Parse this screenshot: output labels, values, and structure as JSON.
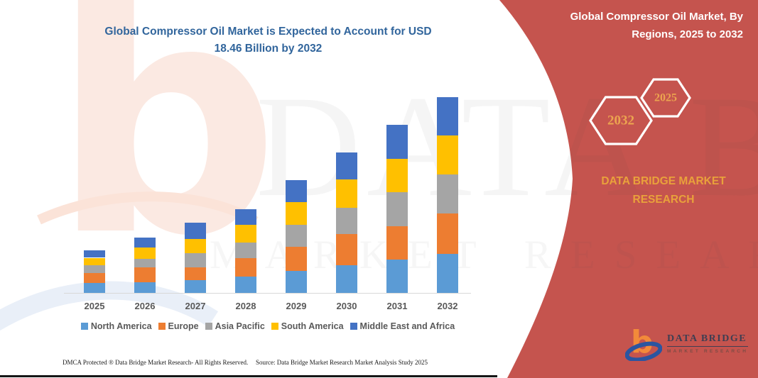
{
  "chart": {
    "title_line1": "Global Compressor Oil Market is Expected to Account for USD",
    "title_line2": "18.46 Billion by 2032"
  },
  "chart_data": {
    "type": "bar",
    "stacked": true,
    "units": "USD Billion",
    "title": "Global Compressor Oil Market is Expected to Account for USD 18.46 Billion by 2032",
    "xlabel": "",
    "ylabel": "",
    "ylim": [
      0,
      20
    ],
    "grid": false,
    "legend_position": "bottom",
    "categories": [
      "2025",
      "2026",
      "2027",
      "2028",
      "2029",
      "2030",
      "2031",
      "2032"
    ],
    "series": [
      {
        "name": "North America",
        "color": "#5B9BD5",
        "values": [
          0.96,
          1.0,
          1.2,
          1.56,
          2.05,
          2.61,
          3.12,
          3.68
        ]
      },
      {
        "name": "Europe",
        "color": "#ED7D31",
        "values": [
          0.94,
          1.38,
          1.18,
          1.74,
          2.29,
          2.92,
          3.16,
          3.79
        ]
      },
      {
        "name": "Asia Pacific",
        "color": "#A5A5A5",
        "values": [
          0.72,
          0.8,
          1.38,
          1.45,
          2.05,
          2.49,
          3.19,
          3.73
        ]
      },
      {
        "name": "South America",
        "color": "#FFC000",
        "values": [
          0.69,
          1.07,
          1.34,
          1.65,
          2.19,
          2.68,
          3.16,
          3.63
        ]
      },
      {
        "name": "Middle East and Africa",
        "color": "#4472C4",
        "values": [
          0.72,
          1.0,
          1.52,
          1.52,
          2.05,
          2.52,
          3.23,
          3.63
        ]
      }
    ],
    "totals": [
      4.03,
      5.25,
      6.62,
      7.92,
      10.63,
      13.22,
      15.86,
      18.46
    ]
  },
  "sidebar": {
    "title_line1": "Global Compressor Oil Market, By",
    "title_line2": "Regions, 2025 to 2032",
    "hex_small_year": "2025",
    "hex_large_year": "2032",
    "brand": "DATA BRIDGE MARKET RESEARCH",
    "accent_color": "#C5544E",
    "gold_color": "#E9A13B"
  },
  "logo": {
    "name": "DATA BRIDGE",
    "tagline": "MARKET RESEARCH"
  },
  "watermark": {
    "line1": "DATA BRIDGE",
    "line2": "MARKET RESEARCH"
  },
  "footer": {
    "left": "DMCA Protected ® Data Bridge Market Research-  All Rights Reserved.",
    "right": "Source: Data Bridge Market Research  Market Analysis Study 2025"
  }
}
